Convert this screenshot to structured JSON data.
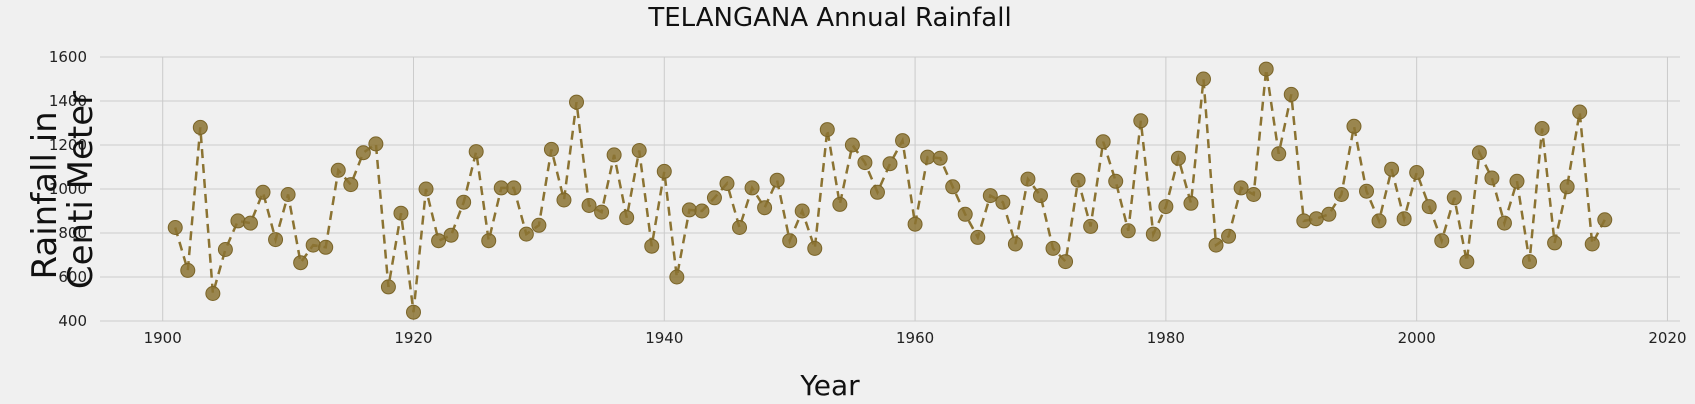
{
  "chart_data": {
    "type": "line",
    "title": "TELANGANA Annual Rainfall",
    "xlabel": "Year",
    "ylabel_lines": [
      "Rainfall in",
      "Centi Meter"
    ],
    "xlim": [
      1895,
      2021
    ],
    "ylim": [
      400,
      1600
    ],
    "xticks": [
      1900,
      1920,
      1940,
      1960,
      1980,
      2000,
      2020
    ],
    "yticks": [
      400,
      600,
      800,
      1000,
      1200,
      1400,
      1600
    ],
    "grid": true,
    "line_style": "dashed",
    "marker": "circle",
    "color": "#8b7332",
    "x": [
      1901,
      1902,
      1903,
      1904,
      1905,
      1906,
      1907,
      1908,
      1909,
      1910,
      1911,
      1912,
      1913,
      1914,
      1915,
      1916,
      1917,
      1918,
      1919,
      1920,
      1921,
      1922,
      1923,
      1924,
      1925,
      1926,
      1927,
      1928,
      1929,
      1930,
      1931,
      1932,
      1933,
      1934,
      1935,
      1936,
      1937,
      1938,
      1939,
      1940,
      1941,
      1942,
      1943,
      1944,
      1945,
      1946,
      1947,
      1948,
      1949,
      1950,
      1951,
      1952,
      1953,
      1954,
      1955,
      1956,
      1957,
      1958,
      1959,
      1960,
      1961,
      1962,
      1963,
      1964,
      1965,
      1966,
      1967,
      1968,
      1969,
      1970,
      1971,
      1972,
      1973,
      1974,
      1975,
      1976,
      1977,
      1978,
      1979,
      1980,
      1981,
      1982,
      1983,
      1984,
      1985,
      1986,
      1987,
      1988,
      1989,
      1990,
      1991,
      1992,
      1993,
      1994,
      1995,
      1996,
      1997,
      1998,
      1999,
      2000,
      2001,
      2002,
      2003,
      2004,
      2005,
      2006,
      2007,
      2008,
      2009,
      2010,
      2011,
      2012,
      2013,
      2014,
      2015
    ],
    "y": [
      825,
      630,
      1280,
      525,
      725,
      855,
      845,
      985,
      770,
      975,
      665,
      745,
      735,
      1085,
      1020,
      1165,
      1205,
      555,
      890,
      440,
      1000,
      765,
      790,
      940,
      1170,
      765,
      1005,
      1005,
      795,
      835,
      1180,
      950,
      1395,
      925,
      895,
      1155,
      870,
      1175,
      740,
      1080,
      600,
      905,
      900,
      960,
      1025,
      825,
      1005,
      915,
      1040,
      765,
      900,
      730,
      1270,
      930,
      1200,
      1120,
      985,
      1115,
      1220,
      840,
      1145,
      1140,
      1010,
      885,
      780,
      970,
      940,
      750,
      1045,
      970,
      730,
      670,
      1040,
      830,
      1215,
      1035,
      810,
      1310,
      795,
      920,
      1140,
      935,
      1500,
      745,
      785,
      1005,
      975,
      1545,
      1160,
      1430,
      855,
      865,
      885,
      975,
      1285,
      990,
      855,
      1090,
      865,
      1075,
      920,
      765,
      960,
      670,
      1165,
      1050,
      845,
      1035,
      670,
      1275,
      755,
      1010,
      1350,
      750,
      860
    ]
  }
}
